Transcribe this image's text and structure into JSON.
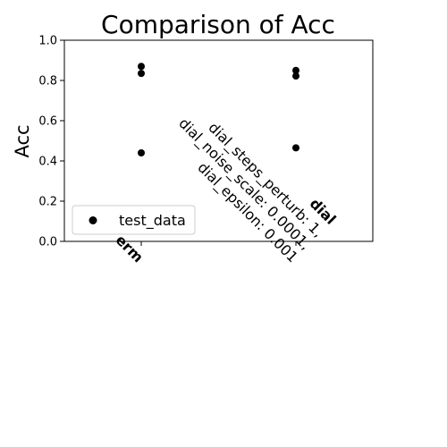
{
  "chart_data": {
    "type": "scatter",
    "title": "Comparison of Acc",
    "xlabel": "",
    "ylabel": "Acc",
    "ylim": [
      0,
      1
    ],
    "yticks": [
      "0.0",
      "0.2",
      "0.4",
      "0.6",
      "0.8",
      "1.0"
    ],
    "grid": false,
    "legend_position": "lower-left",
    "categories": [
      {
        "name": "erm",
        "details": []
      },
      {
        "name": "dial",
        "details": [
          "dial_steps_perturb: 1,",
          "dial_noise_scale: 0.0001,",
          "dial_epsilon: 0.001"
        ]
      }
    ],
    "series": [
      {
        "name": "test_data",
        "color": "#000000",
        "points": [
          {
            "category": 0,
            "y": 0.87
          },
          {
            "category": 0,
            "y": 0.835
          },
          {
            "category": 0,
            "y": 0.44
          },
          {
            "category": 1,
            "y": 0.85
          },
          {
            "category": 1,
            "y": 0.822
          },
          {
            "category": 1,
            "y": 0.465
          }
        ]
      }
    ]
  }
}
